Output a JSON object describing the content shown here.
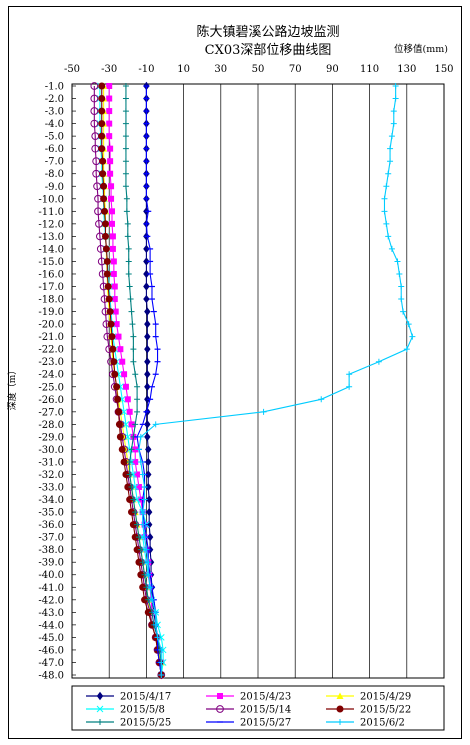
{
  "chart_data": {
    "type": "line",
    "title": "陈大镇碧溪公路边坡监测",
    "subtitle": "CX03深部位移曲线图",
    "xlabel": "位移值(mm)",
    "ylabel": "深度（m）",
    "xlim": [
      -50,
      150
    ],
    "x_ticks": [
      -50,
      -30,
      -10,
      10,
      30,
      50,
      70,
      90,
      110,
      130,
      150
    ],
    "ylim": [
      -48,
      -1
    ],
    "y_ticks": [
      -1,
      -2,
      -3,
      -4,
      -5,
      -6,
      -7,
      -8,
      -9,
      -10,
      -11,
      -12,
      -13,
      -14,
      -15,
      -16,
      -17,
      -18,
      -19,
      -20,
      -21,
      -22,
      -23,
      -24,
      -25,
      -26,
      -27,
      -28,
      -29,
      -30,
      -31,
      -32,
      -33,
      -34,
      -35,
      -36,
      -37,
      -38,
      -39,
      -40,
      -41,
      -42,
      -43,
      -44,
      -45,
      -46,
      -47,
      -48
    ],
    "grid": "vertical",
    "legend": "bottom",
    "series": [
      {
        "name": "2015/4/17",
        "color": "#000080",
        "marker": "diamond",
        "x": [
          -10,
          -10,
          -10,
          -10,
          -10,
          -10,
          -10,
          -10,
          -10,
          -10,
          -10,
          -10,
          -10,
          -10,
          -10,
          -10,
          -10,
          -10,
          -9.5,
          -9.5,
          -9.5,
          -9.5,
          -9.5,
          -9.5,
          -9.5,
          -9.5,
          -9.5,
          -9.5,
          -9.5,
          -9,
          -9,
          -9,
          -9,
          -8.5,
          -8.5,
          -8.5,
          -8,
          -8,
          -7.5,
          -7.5,
          -7,
          -7,
          -6,
          -5,
          -4,
          -3,
          -2,
          -2
        ]
      },
      {
        "name": "2015/4/23",
        "color": "#ff00ff",
        "marker": "square",
        "x": [
          -30,
          -30,
          -30,
          -30,
          -30,
          -29.5,
          -29.5,
          -29.5,
          -29,
          -29,
          -28.5,
          -28.5,
          -28,
          -28,
          -27.5,
          -27.5,
          -27,
          -27,
          -26.5,
          -26,
          -25,
          -24,
          -23,
          -22,
          -21,
          -20,
          -19,
          -18,
          -17,
          -16,
          -16,
          -15,
          -14,
          -13,
          -12,
          -11,
          -11,
          -10,
          -9,
          -8.5,
          -8,
          -7.5,
          -7,
          -6,
          -4,
          -3,
          -2,
          -2
        ]
      },
      {
        "name": "2015/4/29",
        "color": "#ffff00",
        "marker": "triangle",
        "x": [
          -33,
          -33,
          -33,
          -33,
          -33,
          -33,
          -33,
          -33,
          -32.5,
          -32.5,
          -32,
          -32,
          -32,
          -31.5,
          -31.5,
          -31,
          -31,
          -30.5,
          -30,
          -29.5,
          -29,
          -28.5,
          -28,
          -27,
          -26,
          -25,
          -24,
          -23,
          -22,
          -21,
          -20,
          -19,
          -18,
          -17,
          -16,
          -15,
          -14,
          -13,
          -12,
          -11,
          -10,
          -9,
          -8,
          -7,
          -5,
          -4,
          -2,
          -2
        ]
      },
      {
        "name": "2015/5/8",
        "color": "#00ffff",
        "marker": "x",
        "x": [
          -35,
          -35,
          -35,
          -35,
          -34.5,
          -34.5,
          -34,
          -34,
          -33.5,
          -33,
          -33,
          -32.5,
          -32,
          -31.5,
          -31,
          -30.5,
          -30,
          -29.5,
          -29,
          -28.5,
          -28,
          -27,
          -26,
          -25,
          -24,
          -23,
          -22,
          -21,
          -20,
          -19,
          -18,
          -17,
          -16,
          -15,
          -12,
          -10,
          -12,
          -11,
          -10,
          -9,
          -8,
          -7,
          -5,
          -4,
          -2,
          -1,
          -1,
          -2
        ]
      },
      {
        "name": "2015/5/14",
        "color": "#800080",
        "marker": "circle-open",
        "x": [
          -38,
          -38,
          -38,
          -38,
          -37.5,
          -37.5,
          -37,
          -37,
          -36.5,
          -36,
          -36,
          -35.5,
          -35,
          -34.5,
          -34,
          -33.5,
          -33,
          -32.5,
          -32,
          -31.5,
          -31,
          -30,
          -29,
          -28,
          -27,
          -26,
          -25,
          -24,
          -23,
          -22,
          -21,
          -20,
          -19,
          -18,
          -17,
          -16,
          -15,
          -14,
          -13,
          -12,
          -11,
          -10,
          -8,
          -7,
          -5,
          -4,
          -3,
          -2
        ]
      },
      {
        "name": "2015/5/22",
        "color": "#800000",
        "marker": "circle",
        "x": [
          -34,
          -34,
          -34,
          -34,
          -34,
          -34,
          -33.5,
          -33.5,
          -33,
          -33,
          -32.5,
          -32,
          -32,
          -31.5,
          -31,
          -31,
          -30.5,
          -30,
          -29.5,
          -29,
          -28.5,
          -28,
          -27.5,
          -27,
          -26,
          -25.5,
          -25,
          -24.5,
          -24,
          -23,
          -22,
          -21,
          -20,
          -19,
          -18,
          -17,
          -16,
          -15,
          -14,
          -13,
          -12,
          -11,
          -9,
          -7,
          -5,
          -4,
          -3,
          -2
        ]
      },
      {
        "name": "2015/5/25",
        "color": "#008080",
        "marker": "plus",
        "x": [
          -21,
          -21,
          -21,
          -21,
          -21,
          -21,
          -21,
          -21,
          -21,
          -20.5,
          -20.5,
          -20,
          -20,
          -19.5,
          -19.5,
          -19.5,
          -19,
          -18.5,
          -18,
          -17.5,
          -17,
          -17,
          -17,
          -16,
          -15,
          -15,
          -15,
          -16,
          -17,
          -18,
          -19,
          -19,
          -18,
          -17,
          -16,
          -15,
          -14,
          -13,
          -12,
          -11,
          -10,
          -9,
          -7,
          -6,
          -4,
          -3,
          -2,
          -2
        ]
      },
      {
        "name": "2015/5/27",
        "color": "#0000ff",
        "marker": "dash",
        "x": [
          -10,
          -10,
          -10,
          -10,
          -10,
          -10,
          -10,
          -10,
          -10,
          -10,
          -9,
          -10,
          -9.5,
          -8,
          -8,
          -8,
          -7,
          -7,
          -6,
          -5,
          -5,
          -4,
          -4,
          -5,
          -7,
          -8,
          -10,
          -12,
          -15,
          -14,
          -12,
          -11,
          -11,
          -12,
          -12,
          -11,
          -10,
          -9,
          -9,
          -8,
          -7,
          -6,
          -5,
          -5,
          -4,
          -4,
          -3,
          -2
        ]
      },
      {
        "name": "2015/6/2",
        "color": "#00ccff",
        "marker": "plus",
        "x": [
          124,
          124,
          123,
          123,
          122,
          121,
          121,
          120,
          119,
          118,
          118,
          119,
          120,
          122,
          125,
          126,
          127,
          127,
          128,
          131,
          133,
          130,
          115,
          99,
          99,
          84,
          53,
          -5,
          -13,
          -14,
          -13,
          -12,
          -11,
          -11,
          -12,
          -12,
          -11,
          -10,
          -9,
          -9,
          -8,
          -7,
          -5,
          -5,
          -4,
          -2,
          -2,
          -2
        ]
      }
    ]
  }
}
